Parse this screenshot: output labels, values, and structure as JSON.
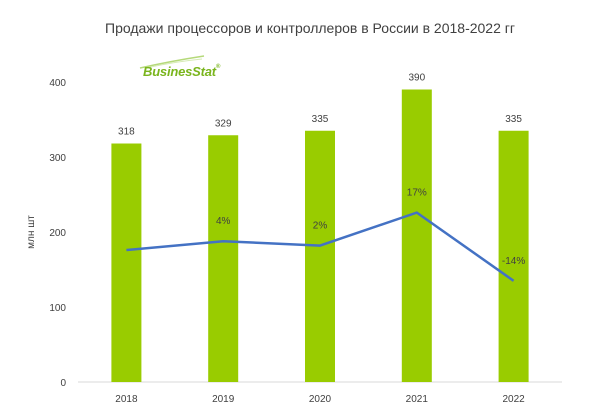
{
  "chart_data": {
    "type": "bar",
    "title": "Продажи процессоров и контроллеров в России в 2018-2022 гг",
    "ylabel": "млн шт",
    "xlabel": "",
    "categories": [
      "2018",
      "2019",
      "2020",
      "2021",
      "2022"
    ],
    "series": [
      {
        "type": "bar",
        "values": [
          318,
          329,
          335,
          390,
          335
        ],
        "labels": [
          "318",
          "329",
          "335",
          "390",
          "335"
        ],
        "color": "#99cc00"
      },
      {
        "type": "line",
        "values": [
          null,
          4,
          2,
          17,
          -14
        ],
        "labels": [
          "",
          "4%",
          "2%",
          "17%",
          "-14%"
        ],
        "color": "#4472c4",
        "note_rendering": "growth line (right-hand implicit scale)"
      }
    ],
    "ylim": [
      0,
      400
    ],
    "yticks": [
      "0",
      "100",
      "200",
      "300",
      "400"
    ],
    "grid": false,
    "legend": "none"
  },
  "logo": {
    "text_main": "BusinesStat",
    "reg_mark": "®",
    "color": "#7ab51d"
  }
}
